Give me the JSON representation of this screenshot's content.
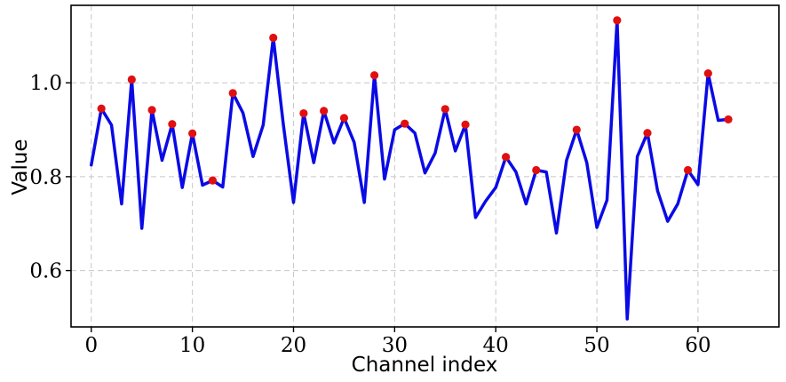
{
  "chart_data": {
    "type": "line",
    "title": "",
    "xlabel": "Channel index",
    "ylabel": "Value",
    "xlim": [
      -2,
      68
    ],
    "ylim": [
      0.48,
      1.165
    ],
    "x_ticks": [
      0,
      10,
      20,
      30,
      40,
      50,
      60
    ],
    "y_ticks": [
      0.6,
      0.8,
      1.0
    ],
    "y_tick_labels": [
      "0.6",
      "0.8",
      "1.0"
    ],
    "grid": true,
    "colors": {
      "line": "#0a0ae6",
      "marker": "#e01010"
    },
    "x": [
      0,
      1,
      2,
      3,
      4,
      5,
      6,
      7,
      8,
      9,
      10,
      11,
      12,
      13,
      14,
      15,
      16,
      17,
      18,
      19,
      20,
      21,
      22,
      23,
      24,
      25,
      26,
      27,
      28,
      29,
      30,
      31,
      32,
      33,
      34,
      35,
      36,
      37,
      38,
      39,
      40,
      41,
      42,
      43,
      44,
      45,
      46,
      47,
      48,
      49,
      50,
      51,
      52,
      53,
      54,
      55,
      56,
      57,
      58,
      59,
      60,
      61,
      62,
      63
    ],
    "values": [
      0.825,
      0.945,
      0.91,
      0.742,
      1.007,
      0.69,
      0.942,
      0.835,
      0.912,
      0.777,
      0.892,
      0.782,
      0.792,
      0.778,
      0.978,
      0.936,
      0.843,
      0.91,
      1.096,
      0.91,
      0.745,
      0.935,
      0.83,
      0.94,
      0.872,
      0.925,
      0.873,
      0.745,
      1.016,
      0.795,
      0.9,
      0.913,
      0.893,
      0.808,
      0.85,
      0.944,
      0.855,
      0.911,
      0.713,
      0.748,
      0.777,
      0.842,
      0.81,
      0.742,
      0.814,
      0.81,
      0.68,
      0.835,
      0.9,
      0.83,
      0.692,
      0.75,
      1.133,
      0.497,
      0.843,
      0.893,
      0.77,
      0.705,
      0.742,
      0.814,
      0.783,
      1.02,
      0.92,
      0.922
    ],
    "marker_indices": [
      1,
      4,
      6,
      8,
      10,
      12,
      14,
      18,
      21,
      23,
      25,
      28,
      31,
      35,
      37,
      41,
      44,
      48,
      52,
      55,
      59,
      61,
      63
    ]
  }
}
